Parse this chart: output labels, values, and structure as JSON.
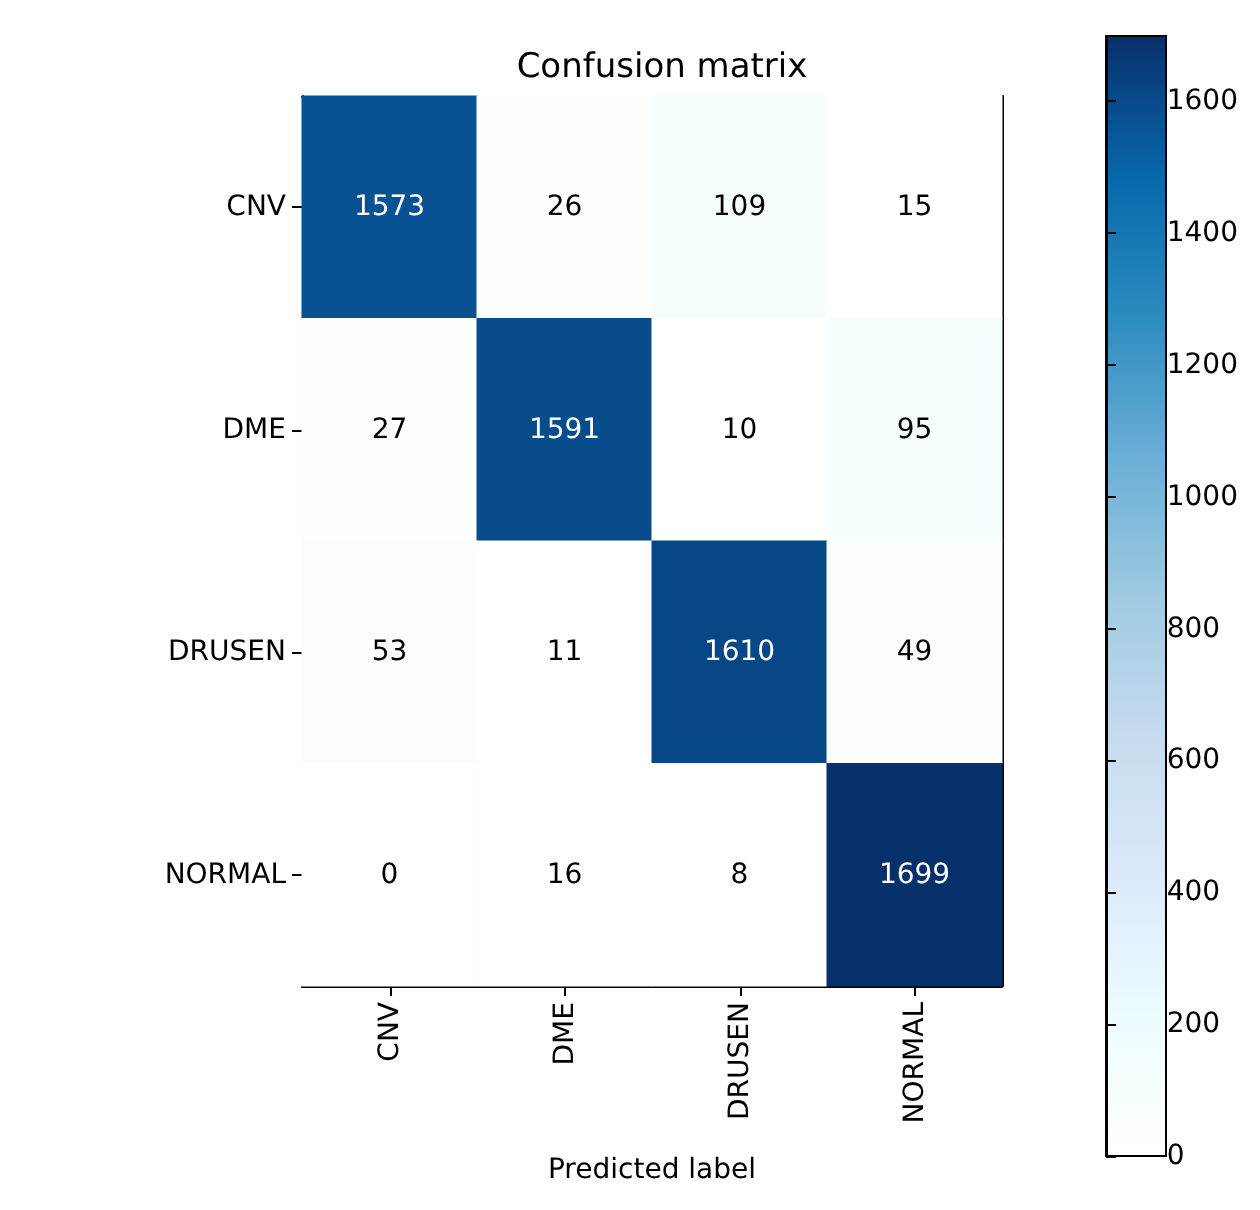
{
  "chart_data": {
    "type": "heatmap",
    "title": "Confusion matrix",
    "xlabel": "Predicted label",
    "categories": [
      "CNV",
      "DME",
      "DRUSEN",
      "NORMAL"
    ],
    "y_categories": [
      "CNV",
      "DME",
      "DRUSEN",
      "NORMAL"
    ],
    "cells": [
      [
        1573,
        26,
        109,
        15
      ],
      [
        27,
        1591,
        10,
        95
      ],
      [
        53,
        11,
        1610,
        49
      ],
      [
        0,
        16,
        8,
        1699
      ]
    ],
    "data_labels": true,
    "clim": [
      0,
      1699
    ],
    "cticks": [
      0,
      200,
      400,
      600,
      800,
      1000,
      1200,
      1400,
      1600
    ]
  }
}
